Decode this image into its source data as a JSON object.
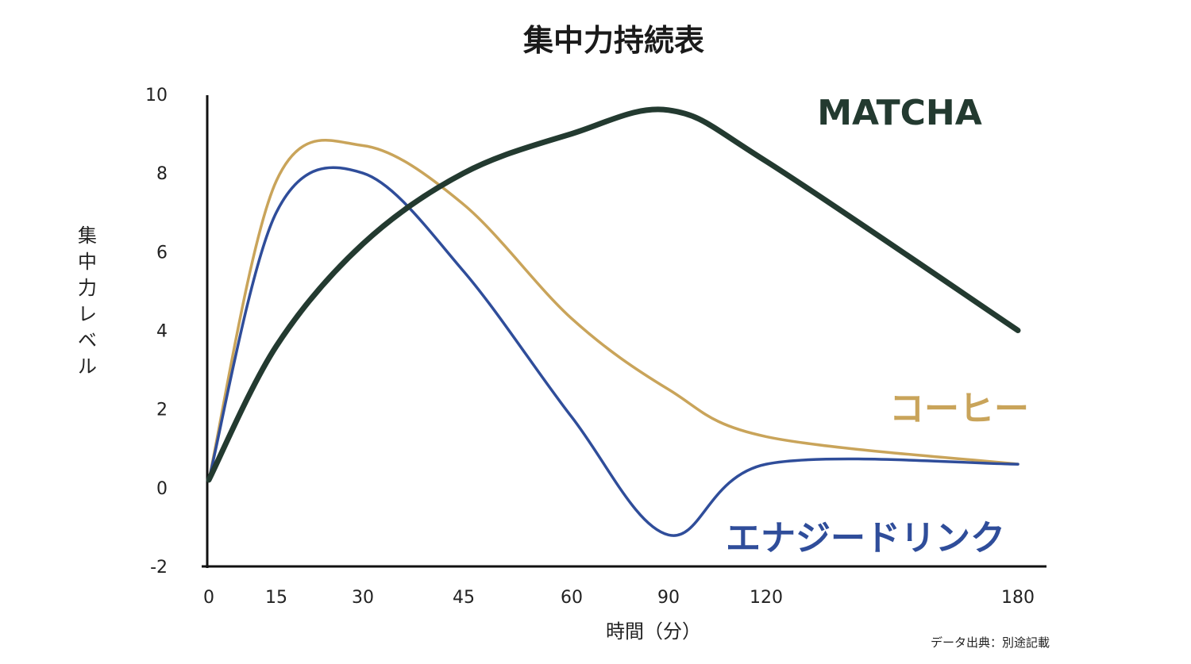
{
  "chart_data": {
    "type": "line",
    "title": "集中力持続表",
    "xlabel": "時間（分）",
    "ylabel": "集中力レベル",
    "source": "データ出典：別途記載",
    "x_ticks": [
      0,
      15,
      30,
      45,
      60,
      90,
      120,
      180
    ],
    "y_ticks": [
      -2,
      0,
      2,
      4,
      6,
      8,
      10
    ],
    "ylim": [
      -2,
      10
    ],
    "grid": false,
    "series": [
      {
        "name": "MATCHA",
        "color": "#233a30",
        "points": [
          [
            0,
            0.2
          ],
          [
            15,
            3.6
          ],
          [
            30,
            6.2
          ],
          [
            45,
            8.0
          ],
          [
            60,
            9.0
          ],
          [
            90,
            9.6
          ],
          [
            120,
            8.3
          ],
          [
            180,
            4.0
          ]
        ]
      },
      {
        "name": "コーヒー",
        "color": "#c9a45a",
        "points": [
          [
            0,
            0.2
          ],
          [
            15,
            7.8
          ],
          [
            30,
            8.7
          ],
          [
            45,
            7.2
          ],
          [
            60,
            4.3
          ],
          [
            90,
            2.5
          ],
          [
            120,
            1.3
          ],
          [
            180,
            0.6
          ]
        ]
      },
      {
        "name": "エナジードリンク",
        "color": "#2f4d9a",
        "points": [
          [
            0,
            0.2
          ],
          [
            15,
            7.0
          ],
          [
            30,
            8.0
          ],
          [
            45,
            5.5
          ],
          [
            60,
            1.8
          ],
          [
            90,
            -1.2
          ],
          [
            120,
            0.6
          ],
          [
            180,
            0.6
          ]
        ]
      }
    ]
  }
}
